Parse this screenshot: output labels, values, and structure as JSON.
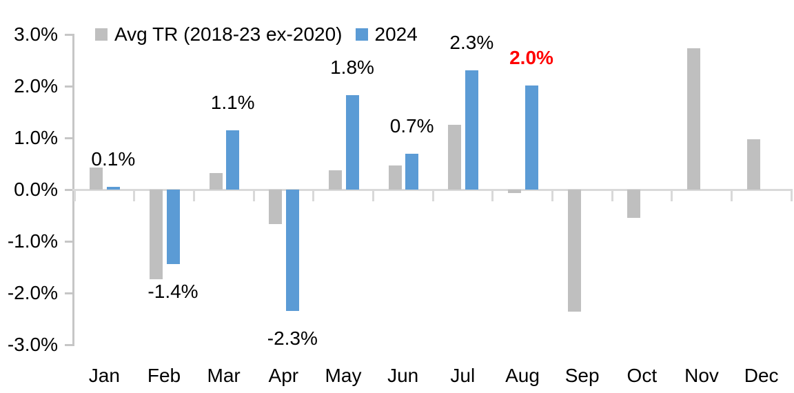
{
  "chart_data": {
    "type": "bar",
    "title": "",
    "xlabel": "",
    "ylabel": "",
    "categories": [
      "Jan",
      "Feb",
      "Mar",
      "Apr",
      "May",
      "Jun",
      "Jul",
      "Aug",
      "Sep",
      "Oct",
      "Nov",
      "Dec"
    ],
    "series": [
      {
        "name": "Avg TR (2018-23 ex-2020)",
        "color": "#BFBFBF",
        "values": [
          0.43,
          -1.73,
          0.32,
          -0.66,
          0.37,
          0.47,
          1.26,
          -0.07,
          -2.36,
          -0.54,
          2.73,
          0.98
        ]
      },
      {
        "name": "2024",
        "color": "#5B9BD5",
        "values": [
          0.06,
          -1.44,
          1.15,
          -2.35,
          1.83,
          0.7,
          2.31,
          2.02,
          null,
          null,
          null,
          null
        ]
      }
    ],
    "value_labels": [
      {
        "category": "Jan",
        "text": "0.1%",
        "color": "#000000",
        "bold": false
      },
      {
        "category": "Feb",
        "text": "-1.4%",
        "color": "#000000",
        "bold": false
      },
      {
        "category": "Mar",
        "text": "1.1%",
        "color": "#000000",
        "bold": false
      },
      {
        "category": "Apr",
        "text": "-2.3%",
        "color": "#000000",
        "bold": false
      },
      {
        "category": "May",
        "text": "1.8%",
        "color": "#000000",
        "bold": false
      },
      {
        "category": "Jun",
        "text": "0.7%",
        "color": "#000000",
        "bold": false
      },
      {
        "category": "Jul",
        "text": "2.3%",
        "color": "#000000",
        "bold": false
      },
      {
        "category": "Aug",
        "text": "2.0%",
        "color": "#FF0000",
        "bold": true
      }
    ],
    "y_axis": {
      "ticks": [
        "3.0%",
        "2.0%",
        "1.0%",
        "0.0%",
        "-1.0%",
        "-2.0%",
        "-3.0%"
      ],
      "tick_values": [
        3,
        2,
        1,
        0,
        -1,
        -2,
        -3
      ],
      "min": -3,
      "max": 3
    },
    "legend_position": "top",
    "grid": false,
    "colors": {
      "background": "#FFFFFF",
      "axis": "#C6C6C6",
      "zero_line": "#D9D9D9",
      "text": "#000000",
      "highlight_label": "#FF0000"
    }
  }
}
